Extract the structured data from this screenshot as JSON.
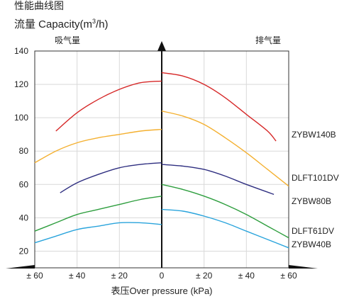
{
  "header": {
    "title": "性能曲线图",
    "subtitle_prefix": "流量 Capacity(m",
    "subtitle_sup": "3",
    "subtitle_suffix": "/h)"
  },
  "chart_data": {
    "type": "line",
    "title": "性能曲线图",
    "ylabel": "流量 Capacity(m³/h)",
    "xlabel": "表压Over pressure (kPa)",
    "left_section_label": "吸气量",
    "right_section_label": "排气量",
    "xlim": [
      -60,
      60
    ],
    "ylim": [
      10,
      140
    ],
    "x_ticks": [
      -60,
      -40,
      -20,
      0,
      20,
      40,
      60
    ],
    "x_tick_labels": [
      "± 60",
      "± 40",
      "± 20",
      "0",
      "± 20",
      "± 40",
      "± 60"
    ],
    "y_ticks": [
      20,
      40,
      60,
      80,
      100,
      120,
      140
    ],
    "y_tick_labels": [
      "20",
      "40",
      "60",
      "80",
      "100",
      "120",
      "140"
    ],
    "grid": true,
    "legend_placement": "right, next to curve ends",
    "series": [
      {
        "name": "ZYBW140B",
        "color": "#d62828",
        "suction": [
          [
            -50,
            92
          ],
          [
            -40,
            103
          ],
          [
            -30,
            111
          ],
          [
            -20,
            117
          ],
          [
            -10,
            121
          ],
          [
            0,
            122
          ]
        ],
        "discharge": [
          [
            0,
            127
          ],
          [
            10,
            125
          ],
          [
            20,
            120
          ],
          [
            30,
            112
          ],
          [
            40,
            102
          ],
          [
            50,
            92
          ],
          [
            54,
            86
          ]
        ]
      },
      {
        "name": "DLFT101DV",
        "color": "#f4b030",
        "suction": [
          [
            -60,
            73
          ],
          [
            -50,
            80
          ],
          [
            -40,
            85
          ],
          [
            -30,
            88
          ],
          [
            -20,
            90
          ],
          [
            -10,
            92
          ],
          [
            0,
            93
          ]
        ],
        "discharge": [
          [
            0,
            104
          ],
          [
            10,
            101
          ],
          [
            20,
            96
          ],
          [
            30,
            88
          ],
          [
            40,
            79
          ],
          [
            50,
            69
          ],
          [
            60,
            59
          ]
        ]
      },
      {
        "name": "ZYBW80B",
        "color": "#2e2e80",
        "suction": [
          [
            -48,
            55
          ],
          [
            -40,
            61
          ],
          [
            -30,
            66
          ],
          [
            -20,
            70
          ],
          [
            -10,
            72
          ],
          [
            0,
            73
          ]
        ],
        "discharge": [
          [
            0,
            72
          ],
          [
            10,
            71
          ],
          [
            20,
            69
          ],
          [
            30,
            65
          ],
          [
            40,
            60
          ],
          [
            53,
            54
          ]
        ]
      },
      {
        "name": "DLFT61DV",
        "color": "#2e9e3e",
        "suction": [
          [
            -60,
            32
          ],
          [
            -50,
            37
          ],
          [
            -40,
            42
          ],
          [
            -30,
            45
          ],
          [
            -20,
            48
          ],
          [
            -10,
            51
          ],
          [
            0,
            53
          ]
        ],
        "discharge": [
          [
            0,
            60
          ],
          [
            10,
            57
          ],
          [
            20,
            53
          ],
          [
            30,
            48
          ],
          [
            40,
            42
          ],
          [
            50,
            35
          ],
          [
            60,
            28
          ]
        ]
      },
      {
        "name": "ZYBW40B",
        "color": "#2aa4dc",
        "suction": [
          [
            -60,
            25
          ],
          [
            -50,
            29
          ],
          [
            -40,
            33
          ],
          [
            -30,
            35
          ],
          [
            -20,
            37
          ],
          [
            -10,
            37
          ],
          [
            0,
            36
          ]
        ],
        "discharge": [
          [
            0,
            45
          ],
          [
            10,
            44
          ],
          [
            20,
            41
          ],
          [
            30,
            37
          ],
          [
            40,
            32
          ],
          [
            50,
            27
          ],
          [
            60,
            22
          ]
        ]
      }
    ]
  }
}
